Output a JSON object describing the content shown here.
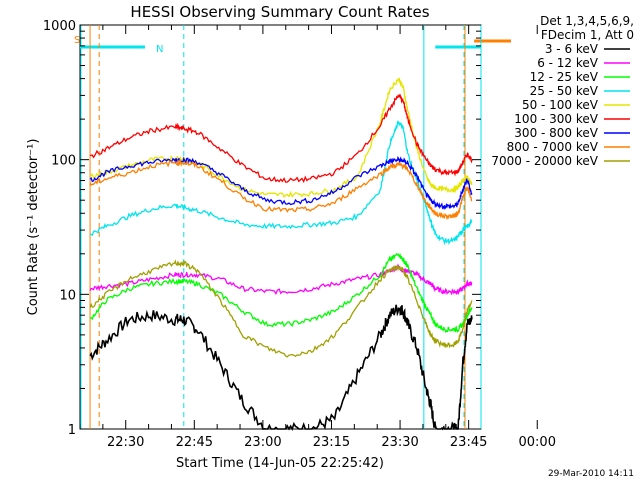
{
  "chart_data": {
    "type": "line",
    "title": "HESSI Observing Summary Count Rates",
    "xlabel": "Start Time (14-Jun-05 22:25:42)",
    "ylabel": "Count Rate (s⁻¹ detector⁻¹)",
    "yscale": "log",
    "ylim": [
      1,
      1000
    ],
    "xlim": [
      -5.7,
      82
    ],
    "x_unit": "minutes after 22:25:42",
    "xtick_labels": [
      "22:30",
      "22:45",
      "23:00",
      "23:15",
      "23:30",
      "23:45",
      "00:00"
    ],
    "ytick_labels": [
      "1",
      "10",
      "100",
      "1000"
    ],
    "ytick_values": [
      1,
      10,
      100,
      1000
    ],
    "xtick_values": [
      4.3,
      19.3,
      34.3,
      49.3,
      64.3,
      79.3,
      94.3
    ],
    "legend_header": [
      "Det 1,3,4,5,6,9,",
      "FDecim 1, Att 0"
    ],
    "legend_position": "right",
    "timestamp": "29-Mar-2010 14:11",
    "markers": {
      "S_label": "S",
      "N_label": "N",
      "night_color": "#00e5ee",
      "saa_color": "#ff7f00",
      "night_bars": [
        [
          -5.7,
          8.5
        ],
        [
          72.0,
          84.0
        ]
      ],
      "saa_bars": [
        [
          80.5,
          82.0
        ]
      ],
      "night_solid_lines": [
        -5.5,
        69.5,
        82.0
      ],
      "night_dashed_lines": [
        17.0,
        86.0
      ],
      "saa_solid_lines": [
        -3.5,
        78.5
      ],
      "saa_dashed_lines": [
        -1.5
      ]
    },
    "x": [
      -3.5,
      0,
      5,
      10,
      15,
      17,
      20,
      25,
      30,
      35,
      40,
      45,
      50,
      55,
      60,
      62,
      64,
      65,
      66,
      68,
      70,
      71,
      72,
      74,
      76,
      77,
      78,
      79,
      80
    ],
    "series": [
      {
        "name": "3 - 6 keV",
        "color": "#000000",
        "values": [
          3.5,
          4.5,
          6.5,
          7,
          6.5,
          6.5,
          5.5,
          3,
          1.6,
          1,
          1,
          1,
          1.2,
          2.5,
          5,
          7,
          8,
          7.5,
          6,
          4,
          2,
          1.5,
          1,
          1,
          1,
          1,
          3,
          6,
          6.5
        ]
      },
      {
        "name": "6 - 12 keV",
        "color": "#ff00ff",
        "values": [
          11,
          11.5,
          12,
          13,
          14,
          14,
          14,
          13,
          11,
          10.5,
          10.5,
          11,
          12,
          13,
          14,
          15,
          16,
          15,
          15,
          14,
          12.5,
          12,
          11,
          10.5,
          10.5,
          10.5,
          11,
          12,
          12
        ]
      },
      {
        "name": "12 - 25 keV",
        "color": "#00ff00",
        "values": [
          6.5,
          9,
          11,
          12,
          12.5,
          12.5,
          12,
          10,
          7.5,
          6,
          6,
          6.5,
          7.5,
          10,
          14,
          18,
          20,
          18,
          16,
          11,
          8,
          7,
          6,
          5.5,
          5.5,
          5.5,
          6,
          7,
          8
        ]
      },
      {
        "name": "25 - 50 keV",
        "color": "#00e5ee",
        "values": [
          28,
          32,
          38,
          43,
          46,
          44,
          42,
          37,
          33,
          32,
          32,
          33,
          34,
          38,
          60,
          130,
          190,
          170,
          110,
          70,
          45,
          35,
          28,
          25,
          25,
          27,
          30,
          32,
          35
        ]
      },
      {
        "name": "50 - 100 keV",
        "color": "#e5e500",
        "values": [
          75,
          80,
          90,
          100,
          103,
          100,
          95,
          75,
          60,
          55,
          55,
          56,
          60,
          75,
          190,
          330,
          400,
          340,
          230,
          120,
          75,
          65,
          62,
          60,
          60,
          62,
          70,
          75,
          65
        ]
      },
      {
        "name": "100 - 300 keV",
        "color": "#ff0000",
        "values": [
          105,
          120,
          145,
          165,
          175,
          170,
          160,
          120,
          90,
          72,
          70,
          72,
          80,
          110,
          180,
          240,
          300,
          270,
          200,
          130,
          100,
          90,
          85,
          80,
          80,
          82,
          95,
          110,
          100
        ]
      },
      {
        "name": "300 - 800 keV",
        "color": "#0000ff",
        "values": [
          70,
          80,
          90,
          96,
          100,
          100,
          96,
          78,
          60,
          50,
          48,
          50,
          58,
          75,
          90,
          97,
          100,
          98,
          94,
          75,
          55,
          50,
          47,
          45,
          45,
          47,
          60,
          72,
          55
        ]
      },
      {
        "name": "800 - 7000 keV",
        "color": "#ff7f00",
        "values": [
          65,
          72,
          80,
          90,
          95,
          95,
          90,
          70,
          52,
          43,
          42,
          43,
          48,
          62,
          78,
          88,
          92,
          90,
          85,
          65,
          48,
          44,
          40,
          38,
          38,
          40,
          52,
          62,
          50
        ]
      },
      {
        "name": "7000 - 20000 keV",
        "color": "#a0a000",
        "values": [
          8,
          10,
          13,
          15,
          17,
          17,
          15,
          9,
          5,
          4,
          3.5,
          3.8,
          5,
          8,
          13,
          15,
          16,
          15,
          13,
          9,
          6,
          5,
          4.5,
          4.2,
          4.2,
          4.5,
          5.5,
          7.5,
          9
        ]
      }
    ]
  }
}
